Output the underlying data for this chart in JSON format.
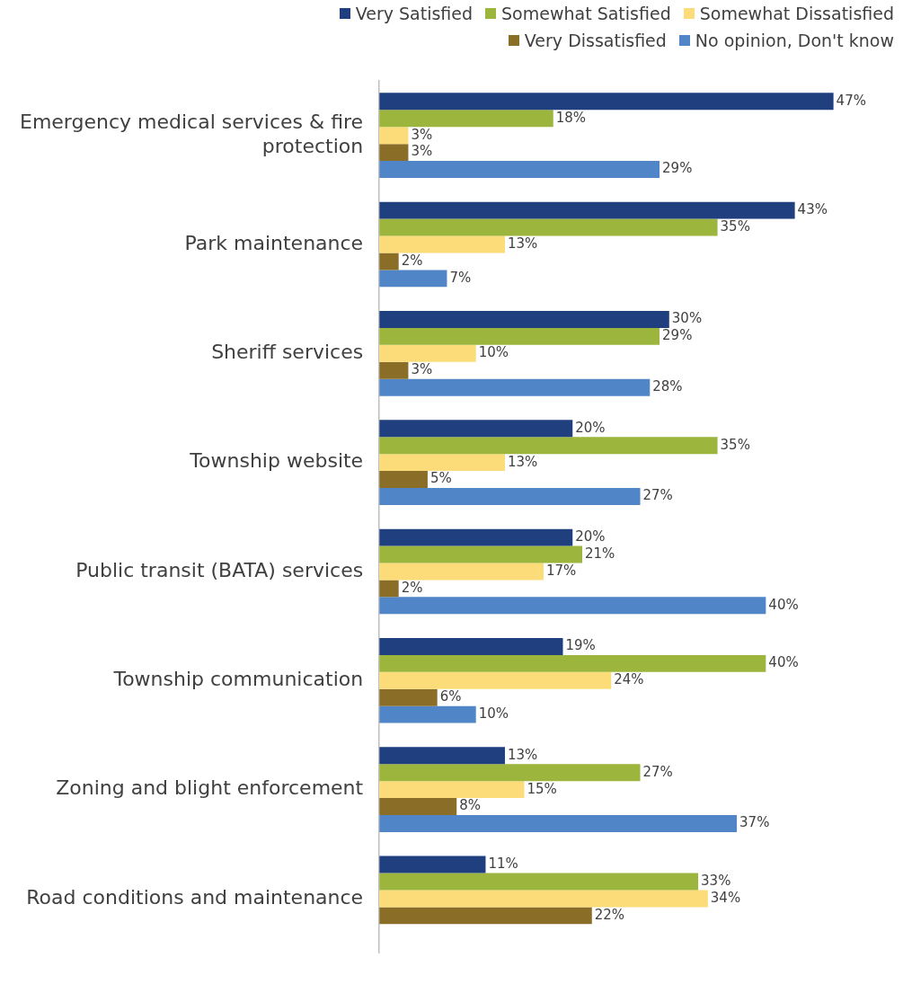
{
  "chart_data": {
    "type": "bar",
    "orientation": "horizontal",
    "legend": "top right",
    "grid": false,
    "tick_labels": "y",
    "categories": [
      "Emergency medical services & fire protection",
      "Park maintenance",
      "Sheriff services",
      "Township website",
      "Public transit (BATA) services",
      "Township communication",
      "Zoning and blight enforcement",
      "Road conditions and maintenance"
    ],
    "series": [
      {
        "name": "Very Satisfied",
        "color": "#203f7f",
        "values": [
          47,
          43,
          30,
          20,
          20,
          19,
          13,
          11
        ],
        "value_labels": [
          "47%",
          "43%",
          "30%",
          "20%",
          "20%",
          "19%",
          "13%",
          "11%"
        ]
      },
      {
        "name": "Somewhat Satisfied",
        "color": "#9bb53d",
        "values": [
          18,
          35,
          29,
          35,
          21,
          40,
          27,
          33
        ],
        "value_labels": [
          "18%",
          "35%",
          "29%",
          "35%",
          "21%",
          "40%",
          "27%",
          "33%"
        ]
      },
      {
        "name": "Somewhat Dissatisfied",
        "color": "#fcdc78",
        "values": [
          3,
          13,
          10,
          13,
          17,
          24,
          15,
          34
        ],
        "value_labels": [
          "3%",
          "13%",
          "10%",
          "13%",
          "17%",
          "24%",
          "15%",
          "34%"
        ]
      },
      {
        "name": "Very Dissatisfied",
        "color": "#8a6d27",
        "values": [
          3,
          2,
          3,
          5,
          2,
          6,
          8,
          22
        ],
        "value_labels": [
          "3%",
          "2%",
          "3%",
          "5%",
          "2%",
          "6%",
          "8%",
          "22%"
        ]
      },
      {
        "name": "No opinion, Don't know",
        "color": "#5086c8",
        "values": [
          29,
          7,
          28,
          27,
          40,
          10,
          37,
          null
        ],
        "value_labels": [
          "29%",
          "7%",
          "28%",
          "27%",
          "40%",
          "10%",
          "37%",
          null
        ]
      }
    ]
  }
}
